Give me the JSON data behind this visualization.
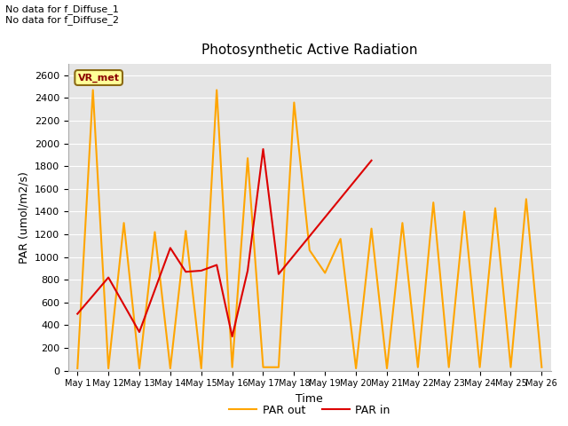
{
  "title": "Photosynthetic Active Radiation",
  "xlabel": "Time",
  "ylabel": "PAR (umol/m2/s)",
  "ylim": [
    0,
    2700
  ],
  "yticks": [
    0,
    200,
    400,
    600,
    800,
    1000,
    1200,
    1400,
    1600,
    1800,
    2000,
    2200,
    2400,
    2600
  ],
  "annotation_text": "No data for f_Diffuse_1\nNo data for f_Diffuse_2",
  "legend_box_label": "VR_met",
  "legend_box_color": "#ffff99",
  "legend_box_border": "#8b6914",
  "background_color": "#e5e5e5",
  "grid_color": "#ffffff",
  "par_in_color": "#dd0000",
  "par_out_color": "#ffa500",
  "x_labels": [
    "May 1",
    "May 12",
    "May 13",
    "May 14",
    "May 15",
    "May 16",
    "May 17",
    "May 18",
    "May 19",
    "May 20",
    "May 21",
    "May 22",
    "May 23",
    "May 24",
    "May 25",
    "May 26"
  ],
  "x_labels_short": [
    "May 1",
    "May 1",
    "May 1",
    "May 1",
    "May 1",
    "May 1",
    "May 1",
    "May 1",
    "May 1",
    "May 2",
    "May 2",
    "May 2",
    "May 2",
    "May 2",
    "May 2",
    "May 26"
  ],
  "par_in_x": [
    0,
    1,
    2,
    3,
    3.5,
    4,
    4.5,
    5,
    5.5,
    6,
    6.5,
    9.5
  ],
  "par_in_y": [
    500,
    820,
    340,
    1080,
    870,
    880,
    930,
    300,
    880,
    1950,
    850,
    1850
  ],
  "par_out_x": [
    0,
    0.5,
    1,
    1.5,
    2,
    2.5,
    3,
    3.5,
    4,
    4.5,
    5,
    5.5,
    6,
    6.5,
    7,
    7.5,
    8,
    8.5,
    9,
    9.5,
    10,
    10.5,
    11,
    11.5,
    12,
    12.5,
    13,
    13.5,
    14,
    14.5,
    15
  ],
  "par_out_y": [
    20,
    2470,
    20,
    1300,
    20,
    1220,
    20,
    1230,
    20,
    2470,
    30,
    1870,
    30,
    30,
    2360,
    1060,
    860,
    1160,
    20,
    1250,
    20,
    1300,
    30,
    1480,
    30,
    1400,
    30,
    1430,
    30,
    1510,
    30
  ]
}
